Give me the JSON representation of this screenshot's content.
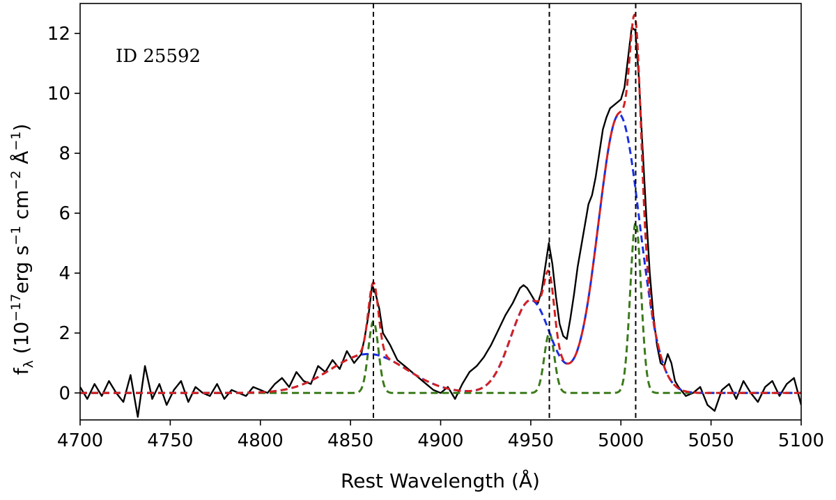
{
  "chart_data": {
    "type": "line",
    "annotation": "ID 25592",
    "xlabel": "Rest Wavelength (Å)",
    "ylabel": "f_λ (10^-17 erg s^-1 cm^-2 Å^-1)",
    "ylabel_parts": {
      "f": "f",
      "lambda": "λ",
      "open": " (10",
      "exp1": "−17",
      "erg": "erg s",
      "exp2": "−1",
      "cm": " cm",
      "exp3": "−2",
      "ang": " Å",
      "exp4": "−1",
      "close": ")"
    },
    "xlim": [
      4700,
      5100
    ],
    "ylim": [
      -0.9,
      13.0
    ],
    "xticks": [
      4700,
      4750,
      4800,
      4850,
      4900,
      4950,
      5000,
      5050,
      5100
    ],
    "yticks": [
      0,
      2,
      4,
      6,
      8,
      10,
      12
    ],
    "grid": false,
    "vlines": [
      4862.7,
      4960.3,
      5008.2
    ],
    "colors": {
      "observed": "#000000",
      "total_fit": "#d42020",
      "narrow": "#3a7a1a",
      "broad": "#1a2fe0",
      "vline": "#000000"
    },
    "series": [
      {
        "style": "solid",
        "color_key": "observed",
        "x": [
          4700,
          4704,
          4708,
          4712,
          4716,
          4720,
          4724,
          4728,
          4732,
          4736,
          4740,
          4744,
          4748,
          4752,
          4756,
          4760,
          4764,
          4768,
          4772,
          4776,
          4780,
          4784,
          4788,
          4792,
          4796,
          4800,
          4804,
          4808,
          4812,
          4816,
          4820,
          4824,
          4828,
          4832,
          4836,
          4840,
          4844,
          4848,
          4852,
          4856,
          4858,
          4860,
          4862,
          4864,
          4866,
          4868,
          4872,
          4876,
          4880,
          4884,
          4888,
          4892,
          4896,
          4900,
          4904,
          4908,
          4912,
          4916,
          4920,
          4924,
          4928,
          4932,
          4936,
          4940,
          4944,
          4946,
          4948,
          4950,
          4952,
          4954,
          4956,
          4958,
          4960,
          4962,
          4964,
          4966,
          4968,
          4970,
          4972,
          4974,
          4976,
          4978,
          4980,
          4982,
          4984,
          4986,
          4988,
          4990,
          4992,
          4994,
          4996,
          4998,
          5000,
          5002,
          5004,
          5006,
          5008,
          5010,
          5012,
          5014,
          5016,
          5018,
          5020,
          5022,
          5024,
          5026,
          5028,
          5030,
          5032,
          5036,
          5040,
          5044,
          5048,
          5052,
          5056,
          5060,
          5064,
          5068,
          5072,
          5076,
          5080,
          5084,
          5088,
          5092,
          5096,
          5100
        ],
        "values": [
          0.2,
          -0.2,
          0.3,
          -0.1,
          0.4,
          0.0,
          -0.3,
          0.6,
          -0.8,
          0.9,
          -0.2,
          0.3,
          -0.4,
          0.1,
          0.4,
          -0.3,
          0.2,
          0.0,
          -0.1,
          0.3,
          -0.2,
          0.1,
          0.0,
          -0.1,
          0.2,
          0.1,
          0.0,
          0.3,
          0.5,
          0.2,
          0.7,
          0.4,
          0.3,
          0.9,
          0.7,
          1.1,
          0.8,
          1.4,
          1.0,
          1.3,
          1.9,
          2.6,
          3.6,
          3.3,
          2.8,
          2.0,
          1.6,
          1.1,
          0.9,
          0.7,
          0.5,
          0.3,
          0.1,
          0.0,
          0.2,
          -0.2,
          0.3,
          0.7,
          0.9,
          1.2,
          1.6,
          2.1,
          2.6,
          3.0,
          3.5,
          3.6,
          3.5,
          3.3,
          3.1,
          3.0,
          3.4,
          4.2,
          5.0,
          4.3,
          3.2,
          2.3,
          1.9,
          1.8,
          2.5,
          3.3,
          4.2,
          4.9,
          5.6,
          6.3,
          6.6,
          7.2,
          8.0,
          8.8,
          9.2,
          9.5,
          9.6,
          9.7,
          9.8,
          10.2,
          11.2,
          12.2,
          12.1,
          10.5,
          8.2,
          6.0,
          4.0,
          2.6,
          1.6,
          1.0,
          0.9,
          1.3,
          1.0,
          0.4,
          0.2,
          -0.1,
          0.0,
          0.2,
          -0.4,
          -0.6,
          0.1,
          0.3,
          -0.2,
          0.4,
          0.0,
          -0.3,
          0.2,
          0.4,
          -0.1,
          0.3,
          0.5,
          -0.4
        ]
      },
      {
        "style": "dashed",
        "color_key": "broad",
        "components": [
          {
            "center": 4860,
            "amplitude": 1.3,
            "sigma": 21
          },
          {
            "center": 4950,
            "amplitude": 3.1,
            "sigma": 11
          },
          {
            "center": 4999,
            "amplitude": 9.3,
            "sigma": 11.5
          }
        ]
      },
      {
        "style": "dashed",
        "color_key": "narrow",
        "components": [
          {
            "center": 4862.7,
            "amplitude": 2.4,
            "sigma": 2.8
          },
          {
            "center": 4960.3,
            "amplitude": 2.0,
            "sigma": 2.8
          },
          {
            "center": 5008.2,
            "amplitude": 5.7,
            "sigma": 3.0
          }
        ]
      },
      {
        "style": "dashed",
        "color_key": "total_fit",
        "sum_of_series": [
          1,
          2
        ]
      }
    ]
  }
}
